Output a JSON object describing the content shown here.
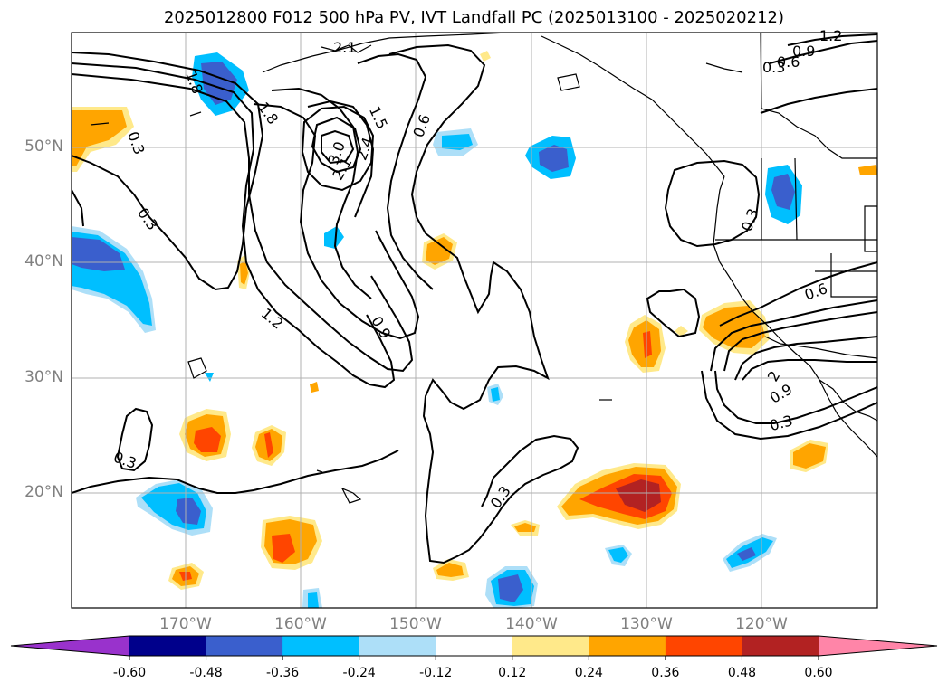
{
  "title": "2025012800 F012 500 hPa PV, IVT Landfall PC (2025013100 - 2025020212)",
  "lat_labels": [
    "50°N",
    "40°N",
    "30°N",
    "20°N"
  ],
  "lon_labels": [
    "170°W",
    "160°W",
    "150°W",
    "140°W",
    "130°W",
    "120°W"
  ],
  "contour_labels": [
    "1.2",
    "0.9",
    "0.6",
    "0.3",
    "1.8",
    "2.1",
    "0.3",
    "0.3",
    "1.5",
    "2.4",
    "3.0",
    "2.1",
    "1.8",
    "0.6",
    "0.3",
    "1.2",
    "0.9",
    "0.3",
    "0.3",
    "0.6",
    "2",
    "0.9",
    "0.3",
    "0.3"
  ],
  "colorbar": {
    "ticks": [
      "-0.60",
      "-0.48",
      "-0.36",
      "-0.24",
      "-0.12",
      "0.12",
      "0.24",
      "0.36",
      "0.48",
      "0.60"
    ],
    "colors": [
      "#9932CC",
      "#00008B",
      "#3A5FCD",
      "#00BFFF",
      "#ADDFF8",
      "#FFFFFF",
      "#FFE98A",
      "#FFA500",
      "#FF4500",
      "#B22222",
      "#FF85A8"
    ]
  },
  "colors": {
    "coast": "#000000",
    "grid": "#B0B0B0",
    "contour": "#000000",
    "label": "#808080"
  }
}
